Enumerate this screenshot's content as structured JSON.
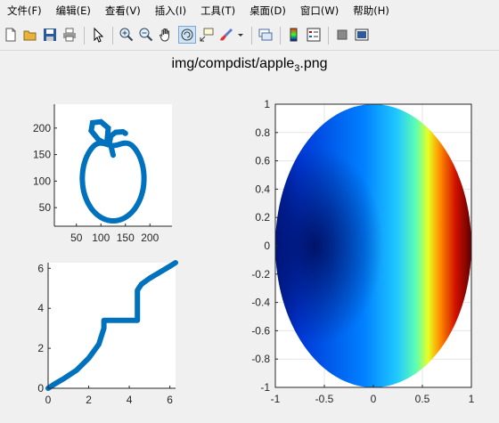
{
  "menu": [
    "文件(F)",
    "编辑(E)",
    "查看(V)",
    "插入(I)",
    "工具(T)",
    "桌面(D)",
    "窗口(W)",
    "帮助(H)"
  ],
  "toolbar_icons": [
    "new-file-icon",
    "open-folder-icon",
    "save-icon",
    "print-icon",
    "pointer-icon",
    "zoom-in-icon",
    "zoom-out-icon",
    "pan-hand-icon",
    "rotate-3d-icon",
    "data-cursor-icon",
    "brush-icon",
    "brush-dropdown-icon",
    "link-plot-icon",
    "colorbar-icon",
    "legend-icon",
    "hide-plot-tools-icon",
    "show-plot-tools-icon"
  ],
  "figure": {
    "title_prefix": "img/compdist/apple",
    "title_sub": "3",
    "title_suffix": ".png"
  },
  "chart_data": [
    {
      "type": "line",
      "name": "apple-outline",
      "color": "#0072bd",
      "xticks": [
        "50",
        "100",
        "150",
        "200"
      ],
      "yticks": [
        "50",
        "100",
        "150",
        "200"
      ],
      "xlim": [
        5,
        245
      ],
      "ylim": [
        15,
        245
      ]
    },
    {
      "type": "line",
      "name": "cumulative-curve",
      "color": "#0072bd",
      "xticks": [
        "0",
        "2",
        "4",
        "6"
      ],
      "yticks": [
        "0",
        "2",
        "4",
        "6"
      ],
      "xlim": [
        0,
        6.28
      ],
      "ylim": [
        0,
        6.28
      ],
      "series": [
        {
          "x": [
            0,
            0.3,
            0.8,
            1.4,
            2.0,
            2.5,
            2.75,
            2.75,
            4.4,
            4.4,
            4.6,
            5.0,
            5.5,
            6.0,
            6.28
          ],
          "y": [
            0,
            0.2,
            0.5,
            0.9,
            1.5,
            2.2,
            3.0,
            3.4,
            3.4,
            4.9,
            5.2,
            5.5,
            5.8,
            6.1,
            6.28
          ]
        }
      ]
    },
    {
      "type": "heatmap",
      "name": "disk-colormap",
      "colormap": "jet",
      "xticks": [
        "-1",
        "-0.5",
        "0",
        "0.5",
        "1"
      ],
      "yticks": [
        "1",
        "0.8",
        "0.6",
        "0.4",
        "0.2",
        "0",
        "-0.2",
        "-0.4",
        "-0.6",
        "-0.8",
        "-1"
      ],
      "xlim": [
        -1,
        1
      ],
      "ylim": [
        -1,
        1
      ]
    }
  ]
}
